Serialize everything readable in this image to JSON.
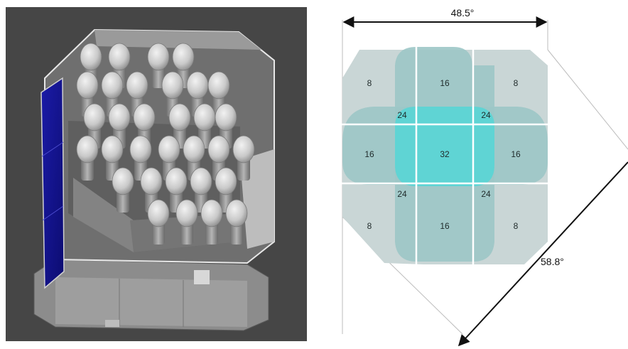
{
  "dimensions": {
    "width_label": "48.5°",
    "diagonal_label": "58.8°"
  },
  "coverage": {
    "corner": "8",
    "edge": "16",
    "overlap": "24",
    "center": "32"
  },
  "colors": {
    "background_render": "#464646",
    "solar_panel": "#15138f",
    "fov_light": "#c9d6d6",
    "fov_mid": "#8fc2c2",
    "fov_center": "#5fd4d4"
  }
}
